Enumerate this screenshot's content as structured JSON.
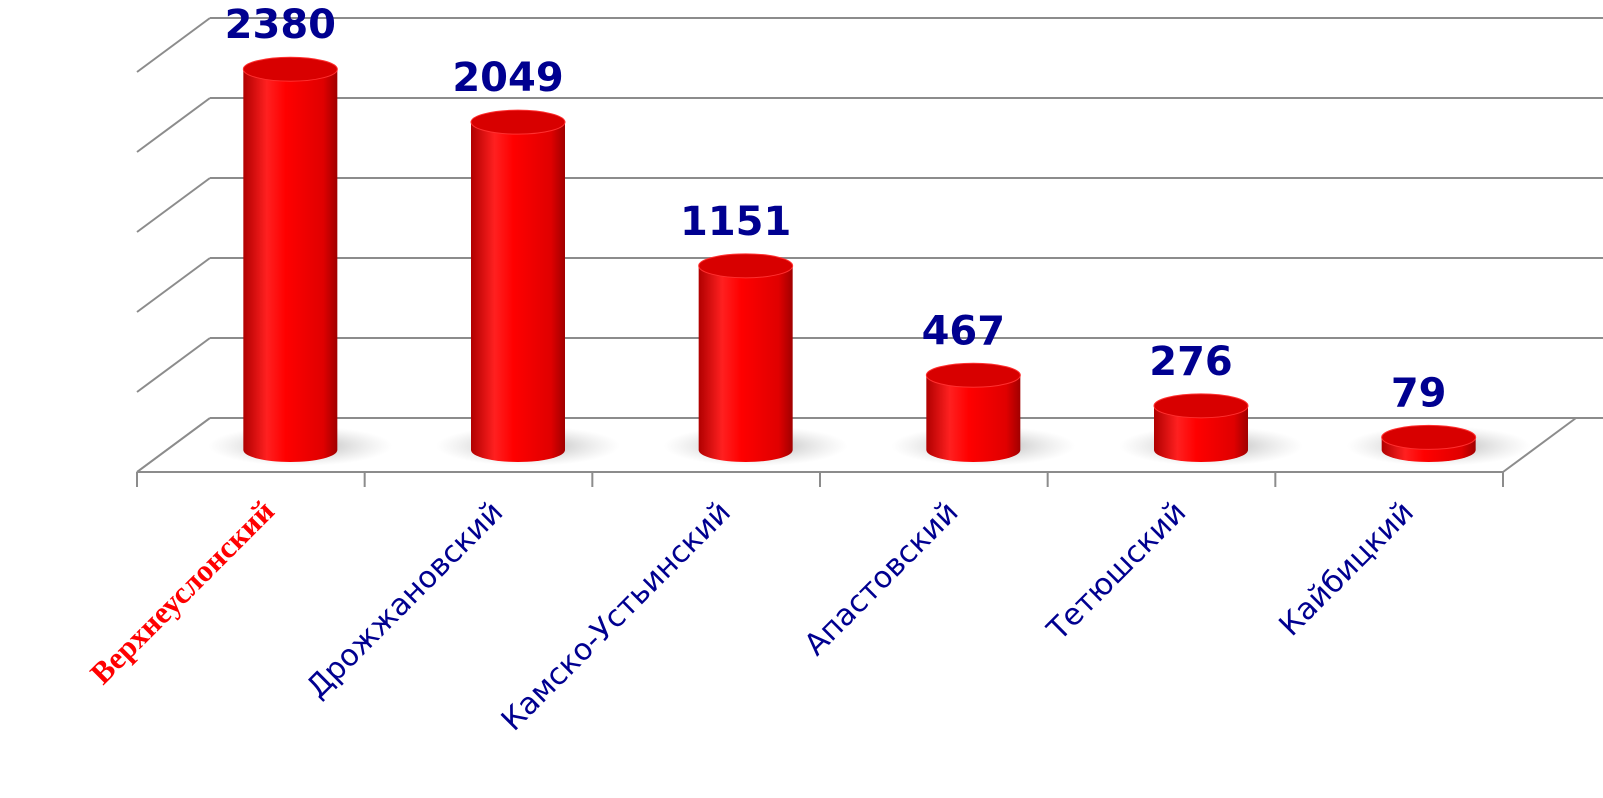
{
  "chart_data": {
    "type": "bar",
    "categories": [
      "Верхнеуслонский",
      "Дрожжановский",
      "Камско-Устьинский",
      "Апастовский",
      "Тетюшский",
      "Кайбицкий"
    ],
    "category_colors": [
      "#ff0000",
      "#000090",
      "#000090",
      "#000090",
      "#000090",
      "#000090"
    ],
    "values": [
      2380,
      2049,
      1151,
      467,
      276,
      79
    ],
    "color": "#ff0000",
    "ylim": [
      0,
      2500
    ],
    "yticks": [
      0,
      500,
      1000,
      1500,
      2000,
      2500
    ],
    "grid": true
  }
}
